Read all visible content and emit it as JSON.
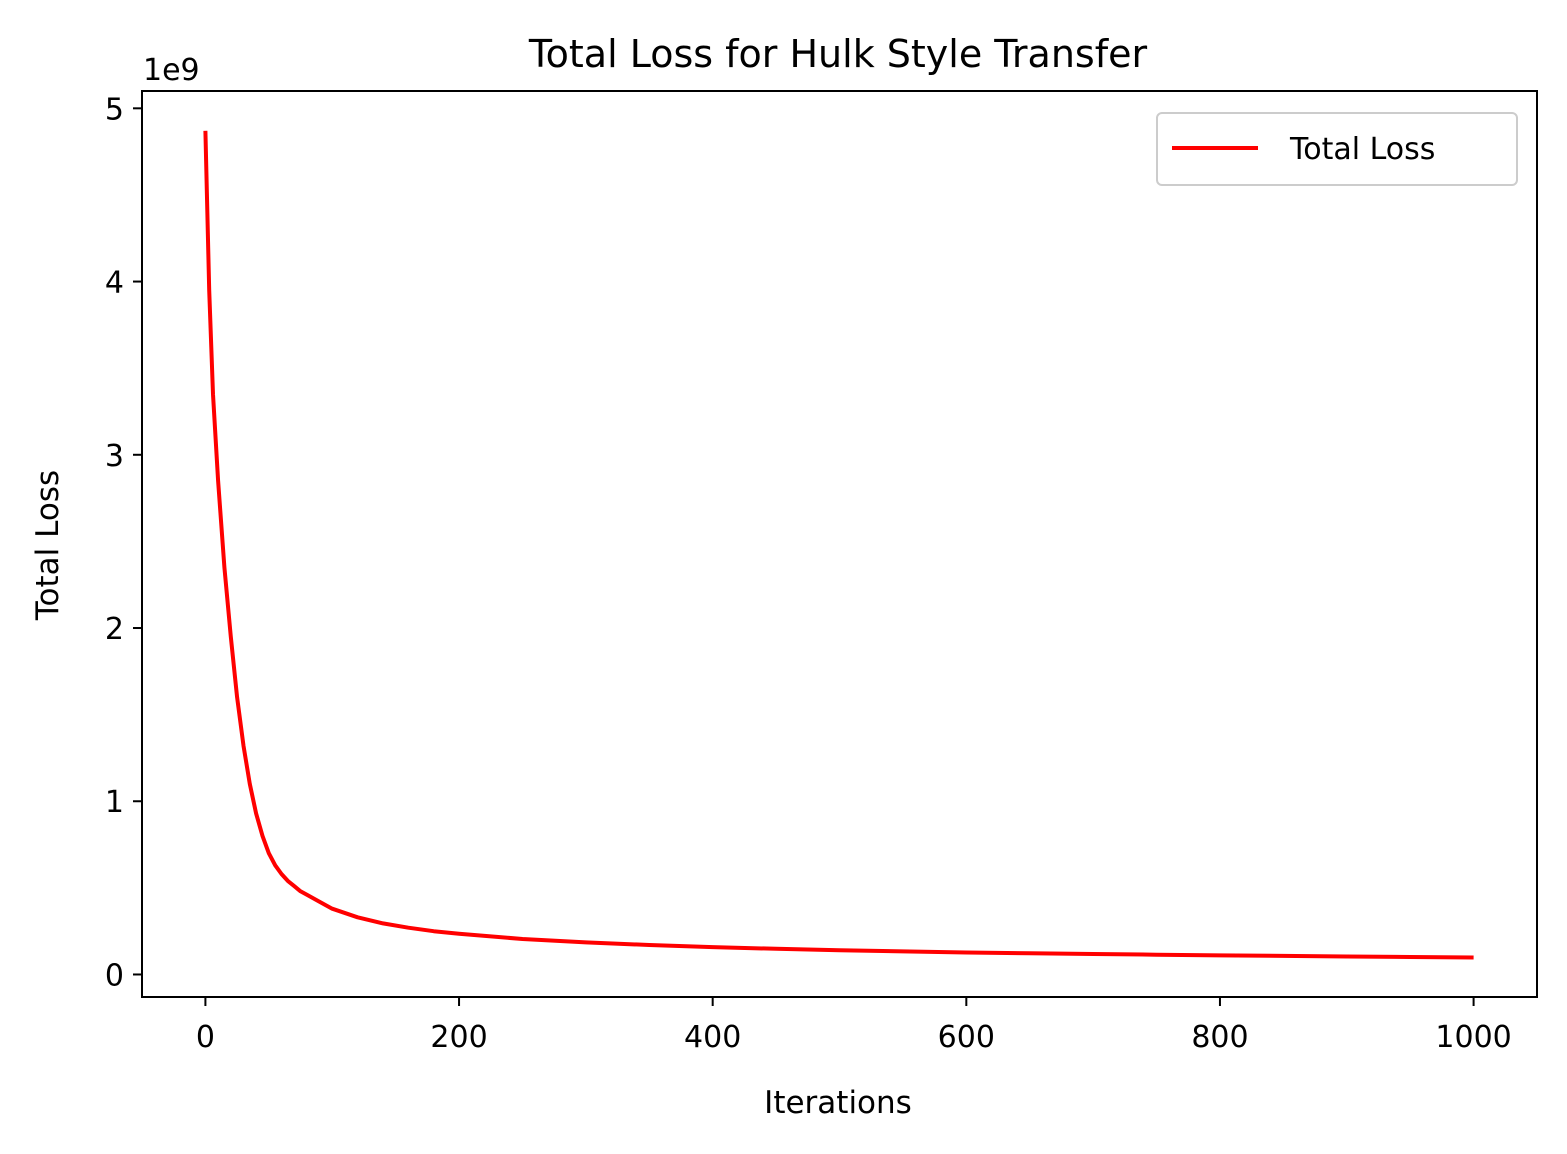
{
  "chart_data": {
    "type": "line",
    "title": "Total Loss for Hulk Style Transfer",
    "xlabel": "Iterations",
    "ylabel": "Total Loss",
    "y_offset_label": "1e9",
    "xlim": [
      -50,
      1050
    ],
    "ylim": [
      -0.13,
      5.1
    ],
    "y_scale_factor": 1000000000,
    "xticks": [
      0,
      200,
      400,
      600,
      800,
      1000
    ],
    "xtick_labels": [
      "0",
      "200",
      "400",
      "600",
      "800",
      "1000"
    ],
    "yticks": [
      0,
      1,
      2,
      3,
      4,
      5
    ],
    "ytick_labels": [
      "0",
      "1",
      "2",
      "3",
      "4",
      "5"
    ],
    "grid": false,
    "legend": {
      "placement": "top-right",
      "entries": [
        "Total Loss"
      ]
    },
    "series": [
      {
        "name": "Total Loss",
        "color": "#ff0000",
        "x": [
          0,
          3,
          6,
          10,
          15,
          20,
          25,
          30,
          35,
          40,
          45,
          50,
          55,
          60,
          65,
          70,
          75,
          80,
          90,
          100,
          120,
          140,
          160,
          180,
          200,
          250,
          300,
          350,
          400,
          450,
          500,
          550,
          600,
          650,
          700,
          750,
          800,
          850,
          900,
          950,
          1000
        ],
        "y": [
          4.87,
          3.95,
          3.35,
          2.85,
          2.35,
          1.95,
          1.6,
          1.32,
          1.1,
          0.93,
          0.8,
          0.7,
          0.63,
          0.58,
          0.54,
          0.51,
          0.48,
          0.46,
          0.42,
          0.38,
          0.33,
          0.295,
          0.27,
          0.25,
          0.235,
          0.205,
          0.185,
          0.17,
          0.158,
          0.148,
          0.14,
          0.133,
          0.127,
          0.122,
          0.118,
          0.114,
          0.11,
          0.107,
          0.104,
          0.101,
          0.098
        ]
      }
    ]
  }
}
